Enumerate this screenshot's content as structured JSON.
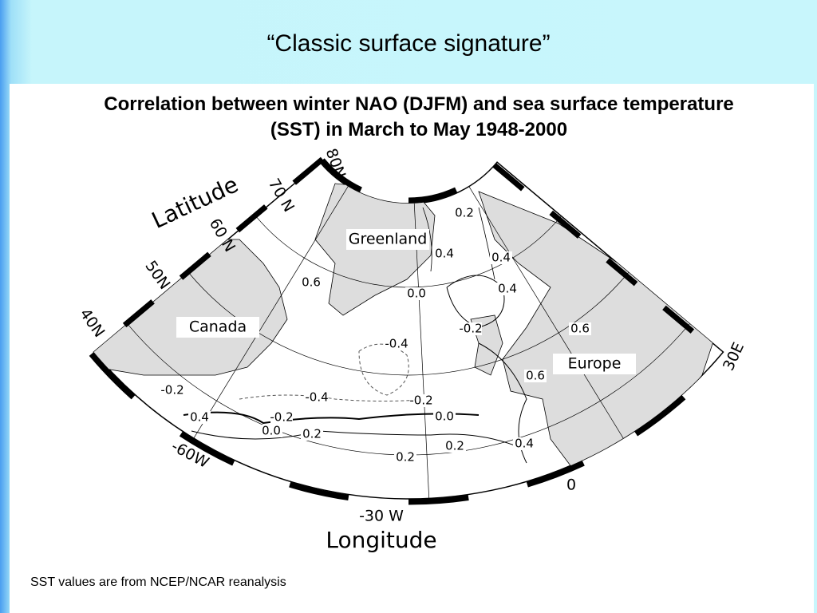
{
  "slide_title": "“Classic surface signature”",
  "figure_title": "Correlation between winter NAO (DJFM) and sea surface temperature (SST) in March to May 1948-2000",
  "axis_labels": {
    "latitude": "Latitude",
    "longitude": "Longitude"
  },
  "latitude_labels": [
    "80N",
    "70 N",
    "60 N",
    "50N",
    "40N"
  ],
  "longitude_labels": [
    "-60W",
    "-30 W",
    "0",
    "30E"
  ],
  "regions": [
    "Greenland",
    "Canada",
    "Europe"
  ],
  "contour_labels": [
    "0.2",
    "0.4",
    "0.4",
    "0.6",
    "0.0",
    "0.4",
    "-0.2",
    "0.6",
    "-0.4",
    "0.6",
    "-0.2",
    "-0.4",
    "-0.2",
    "0.4",
    "-0.2",
    "0.0",
    "0.0",
    "0.2",
    "0.2",
    "0.4",
    "0.2"
  ],
  "footnote": "SST values are from NCEP/NCAR reanalysis"
}
